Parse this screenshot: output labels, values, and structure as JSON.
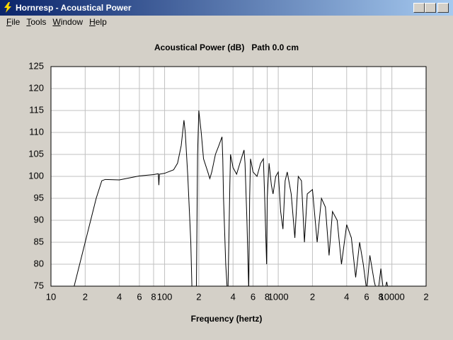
{
  "window": {
    "title": "Hornresp - Acoustical Power",
    "menu": [
      "File",
      "Tools",
      "Window",
      "Help"
    ]
  },
  "chart_data": {
    "type": "line",
    "title": "Acoustical Power (dB)   Path 0.0 cm",
    "xlabel": "Frequency (hertz)",
    "x": [
      16,
      20,
      25,
      28,
      30,
      40,
      50,
      60,
      80,
      88,
      89,
      90,
      100,
      120,
      130,
      140,
      148,
      152,
      160,
      170,
      175,
      190,
      195,
      200,
      210,
      220,
      240,
      250,
      260,
      280,
      300,
      320,
      325,
      330,
      345,
      360,
      375,
      380,
      400,
      430,
      460,
      500,
      510,
      530,
      550,
      560,
      570,
      600,
      650,
      700,
      740,
      760,
      790,
      800,
      830,
      870,
      900,
      950,
      1000,
      1050,
      1100,
      1150,
      1200,
      1300,
      1400,
      1500,
      1600,
      1700,
      1800,
      2000,
      2200,
      2400,
      2600,
      2800,
      3000,
      3300,
      3600,
      4000,
      4400,
      4800,
      5200,
      5600,
      6000,
      6400,
      7000,
      7500,
      8000,
      8500,
      9000,
      9500
    ],
    "values": [
      75,
      85,
      95,
      99,
      99.3,
      99.2,
      99.7,
      100.1,
      100.4,
      100.6,
      98,
      100.5,
      100.7,
      101.5,
      103,
      107,
      112.8,
      110,
      100,
      85,
      72,
      72,
      105,
      115,
      110,
      104,
      101,
      99.5,
      101,
      105,
      107,
      109,
      104,
      95,
      80,
      72,
      98,
      105,
      102,
      100.5,
      103,
      106,
      103,
      90,
      74,
      95,
      104,
      101,
      100,
      103,
      104,
      95,
      80,
      95,
      103,
      98,
      96,
      100,
      101,
      92,
      88,
      99,
      101,
      96,
      86,
      100,
      99,
      85,
      96,
      97,
      85,
      95,
      93,
      82,
      92,
      90,
      80,
      89,
      86,
      77,
      85,
      80,
      74,
      82,
      76,
      73,
      79,
      73,
      76,
      73
    ],
    "color": "#000000",
    "xscale": "log",
    "grid": true,
    "xlim": [
      10,
      20000
    ],
    "ylim": [
      75,
      125
    ],
    "xticks": [
      10,
      {
        "value": 20,
        "label": "2"
      },
      {
        "value": 40,
        "label": "4"
      },
      {
        "value": 60,
        "label": "6"
      },
      {
        "value": 80,
        "label": "8"
      },
      100,
      {
        "value": 200,
        "label": "2"
      },
      {
        "value": 400,
        "label": "4"
      },
      {
        "value": 600,
        "label": "6"
      },
      {
        "value": 800,
        "label": "8"
      },
      1000,
      {
        "value": 2000,
        "label": "2"
      },
      {
        "value": 4000,
        "label": "4"
      },
      {
        "value": 6000,
        "label": "6"
      },
      {
        "value": 8000,
        "label": "8"
      },
      10000,
      {
        "value": 20000,
        "label": "2"
      }
    ],
    "yticks": [
      75,
      80,
      85,
      90,
      95,
      100,
      105,
      110,
      115,
      120,
      125
    ]
  }
}
